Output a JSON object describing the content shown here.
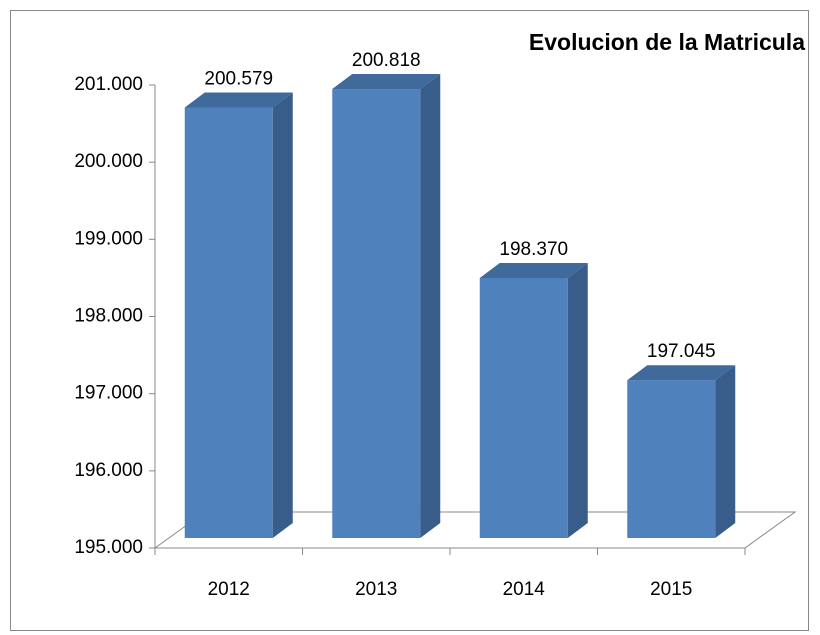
{
  "chart_data": {
    "type": "bar3d",
    "title": "Evolucion de la Matricula",
    "categories": [
      "2012",
      "2013",
      "2014",
      "2015"
    ],
    "values": [
      200579,
      200818,
      198370,
      197045
    ],
    "value_labels": [
      "200.579",
      "200.818",
      "198.370",
      "197.045"
    ],
    "color": "#4f81bd",
    "ylim": [
      195000,
      201000
    ],
    "yticks": [
      {
        "value": 195000,
        "label": "195.000"
      },
      {
        "value": 196000,
        "label": "196.000"
      },
      {
        "value": 197000,
        "label": "197.000"
      },
      {
        "value": 198000,
        "label": "198.000"
      },
      {
        "value": 199000,
        "label": "199.000"
      },
      {
        "value": 200000,
        "label": "200.000"
      },
      {
        "value": 201000,
        "label": "201.000"
      }
    ],
    "grid": false
  }
}
